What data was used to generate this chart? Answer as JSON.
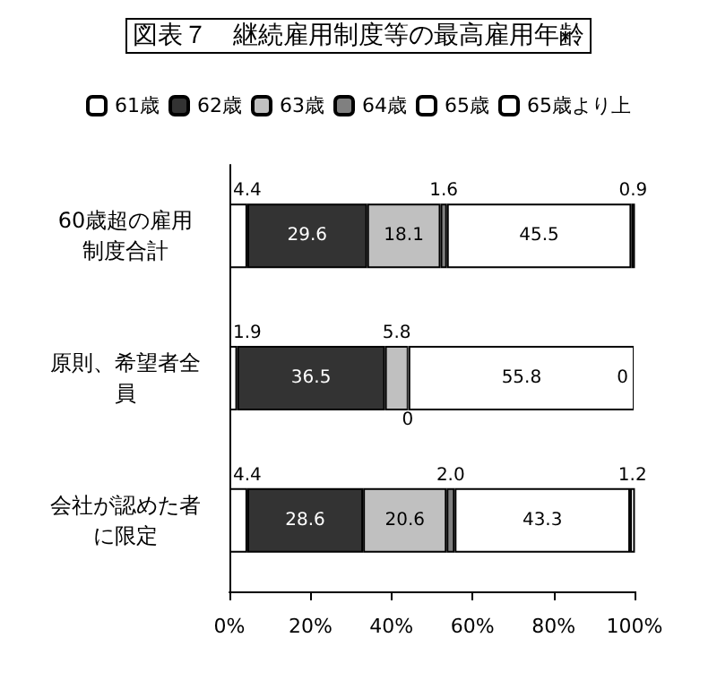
{
  "chart_data": {
    "type": "bar",
    "title": "図表７　継続雇用制度等の最高雇用年齢",
    "orientation": "horizontal",
    "stacked": true,
    "categories": [
      "60歳超の雇用制度合計",
      "原則、希望者全員",
      "会社が認めた者に限定"
    ],
    "series": [
      {
        "name": "61歳",
        "color": "#ffffff",
        "values": [
          4.4,
          1.9,
          4.4
        ],
        "value_labels": [
          "4.4",
          "1.9",
          "4.4"
        ]
      },
      {
        "name": "62歳",
        "color": "#333333",
        "values": [
          29.6,
          36.5,
          28.6
        ],
        "value_labels": [
          "29.6",
          "36.5",
          "28.6"
        ]
      },
      {
        "name": "63歳",
        "color": "#c0c0c0",
        "values": [
          18.1,
          5.8,
          20.6
        ],
        "value_labels": [
          "18.1",
          "5.8",
          "20.6"
        ]
      },
      {
        "name": "64歳",
        "color": "#808080",
        "values": [
          1.6,
          0,
          2.0
        ],
        "value_labels": [
          "1.6",
          "0",
          "2.0"
        ]
      },
      {
        "name": "65歳",
        "color": "#ffffff",
        "values": [
          45.5,
          55.8,
          43.3
        ],
        "value_labels": [
          "45.5",
          "55.8",
          "43.3"
        ]
      },
      {
        "name": "65歳より上",
        "color": "#ffffff",
        "values": [
          0.9,
          0,
          1.2
        ],
        "value_labels": [
          "0.9",
          "0",
          "1.2"
        ]
      }
    ],
    "xlim": [
      0,
      100
    ],
    "xticks": [
      {
        "value": 0,
        "label": "0%"
      },
      {
        "value": 20,
        "label": "20%"
      },
      {
        "value": 40,
        "label": "40%"
      },
      {
        "value": 60,
        "label": "60%"
      },
      {
        "value": 80,
        "label": "80%"
      },
      {
        "value": 100,
        "label": "100%"
      }
    ],
    "legend": "top",
    "grid": false
  }
}
